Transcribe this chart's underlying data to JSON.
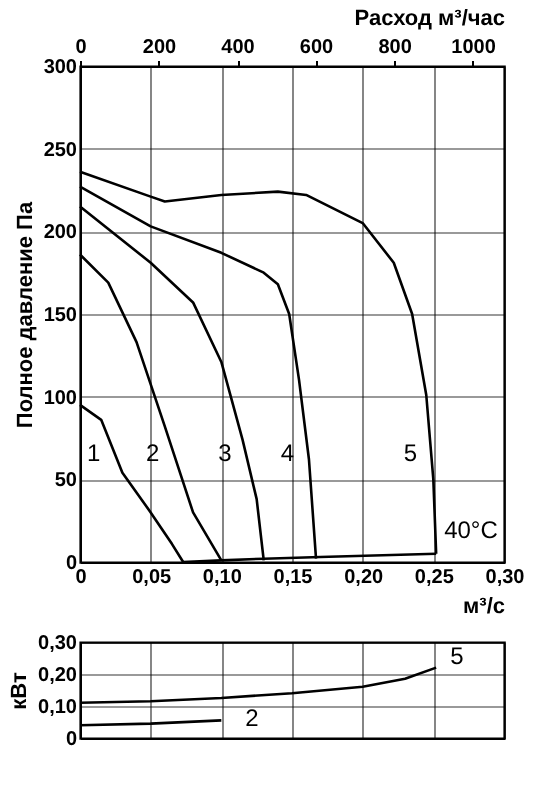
{
  "chart_data": [
    {
      "type": "line",
      "xlabel": "м³/с",
      "ylabel": "Полное давление Па",
      "x2label": "Расход м³/час",
      "xlim": [
        0,
        0.3
      ],
      "xticks": [
        0,
        {
          "value": 0.05,
          "label": "0,05"
        },
        {
          "value": 0.1,
          "label": "0,10"
        },
        {
          "value": 0.15,
          "label": "0,15"
        },
        {
          "value": 0.2,
          "label": "0,20"
        },
        {
          "value": 0.25,
          "label": "0,25"
        },
        {
          "value": 0.3,
          "label": "0,30"
        }
      ],
      "x2lim": [
        0,
        1080
      ],
      "x2ticks": [
        0,
        200,
        400,
        600,
        800,
        1000
      ],
      "ylim": [
        0,
        300
      ],
      "yticks": [
        0,
        50,
        100,
        150,
        200,
        250,
        300
      ],
      "grid": true,
      "line_style": "solid",
      "series": [
        {
          "name": "1",
          "color": "#000000",
          "x": [
            0,
            0.015,
            0.03,
            0.05,
            0.065,
            0.073
          ],
          "values": [
            95,
            86,
            54,
            30,
            11,
            0
          ]
        },
        {
          "name": "2",
          "color": "#000000",
          "x": [
            0,
            0.02,
            0.04,
            0.06,
            0.08,
            0.1
          ],
          "values": [
            186,
            169,
            133,
            82,
            30,
            1
          ]
        },
        {
          "name": "3",
          "color": "#000000",
          "x": [
            0,
            0.05,
            0.08,
            0.1,
            0.115,
            0.125,
            0.13
          ],
          "values": [
            215,
            181,
            157,
            121,
            74,
            38,
            1
          ]
        },
        {
          "name": "4",
          "color": "#000000",
          "x": [
            0,
            0.05,
            0.1,
            0.13,
            0.14,
            0.148,
            0.155,
            0.162,
            0.167
          ],
          "values": [
            227,
            203,
            187,
            175,
            168,
            150,
            110,
            62,
            2
          ]
        },
        {
          "name": "5",
          "color": "#000000",
          "x": [
            0,
            0.05,
            0.06,
            0.1,
            0.14,
            0.16,
            0.2,
            0.222,
            0.235,
            0.245,
            0.25,
            0.252
          ],
          "values": [
            236,
            221,
            218,
            222,
            224,
            222,
            205,
            181,
            150,
            101,
            50,
            5
          ]
        },
        {
          "name": "40°C",
          "color": "#000000",
          "x": [
            0.073,
            0.1,
            0.13,
            0.17,
            0.252
          ],
          "values": [
            0,
            1,
            2,
            3,
            5
          ]
        }
      ]
    },
    {
      "type": "line",
      "ylabel": "кВт",
      "xlim": [
        0,
        0.3
      ],
      "xticks": [
        {
          "value": 0,
          "label": null
        },
        {
          "value": 0.05,
          "label": null
        },
        {
          "value": 0.1,
          "label": null
        },
        {
          "value": 0.15,
          "label": null
        },
        {
          "value": 0.2,
          "label": null
        },
        {
          "value": 0.25,
          "label": null
        },
        {
          "value": 0.3,
          "label": null
        }
      ],
      "tick_labels": "y",
      "ylim": [
        0,
        0.3
      ],
      "yticks": [
        0,
        {
          "value": 0.1,
          "label": "0,10"
        },
        {
          "value": 0.2,
          "label": "0,20"
        },
        {
          "value": 0.3,
          "label": "0,30"
        }
      ],
      "grid": true,
      "line_style": "solid",
      "series": [
        {
          "name": "5",
          "color": "#000000",
          "x": [
            0,
            0.05,
            0.1,
            0.15,
            0.2,
            0.23,
            0.252
          ],
          "values": [
            0.11,
            0.115,
            0.125,
            0.14,
            0.16,
            0.185,
            0.22
          ]
        },
        {
          "name": "2",
          "color": "#000000",
          "x": [
            0,
            0.05,
            0.1
          ],
          "values": [
            0.04,
            0.045,
            0.055
          ]
        }
      ]
    }
  ]
}
